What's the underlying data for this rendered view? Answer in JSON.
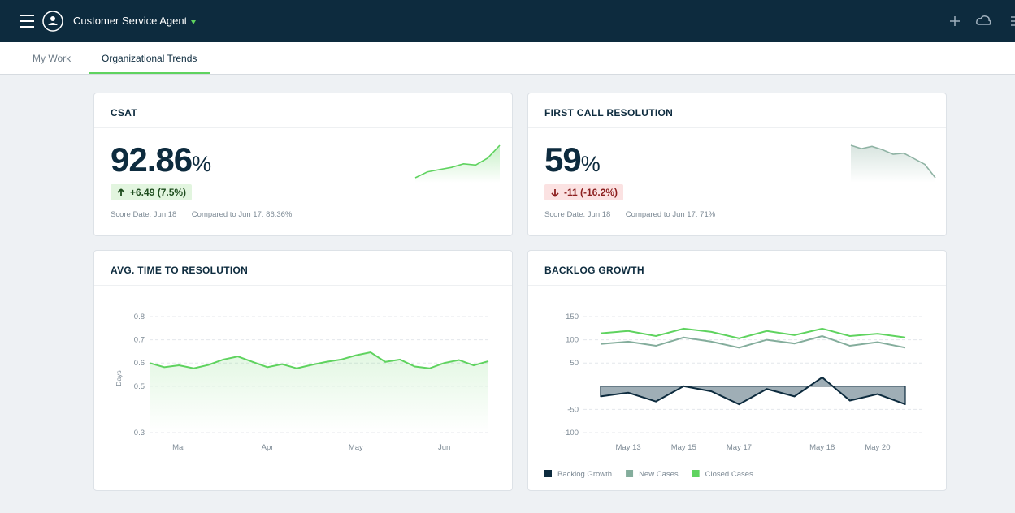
{
  "header": {
    "title": "Customer Service Agent"
  },
  "tabs": [
    "My Work",
    "Organizational Trends"
  ],
  "cards": [
    {
      "title": "CSAT",
      "value": "92.86",
      "unit": "%",
      "change": "+6.49 (7.5%)",
      "direction": "up",
      "score_date": "Score Date: Jun 18",
      "compared": "Compared to Jun 17: 86.36%",
      "sparkline": {
        "type": "line",
        "values": [
          76.3,
          79.3,
          80.5,
          81.6,
          83.4,
          82.8,
          86.36,
          92.86
        ],
        "color": "#5fd35f"
      }
    },
    {
      "title": "FIRST CALL RESOLUTION",
      "value": "59",
      "unit": "%",
      "change": "-11 (-16.2%)",
      "direction": "down",
      "score_date": "Score Date: Jun 18",
      "compared": "Compared to Jun 17: 71%",
      "sparkline": {
        "type": "line",
        "values": [
          88,
          85,
          87,
          84,
          80,
          81,
          76,
          71,
          59
        ],
        "color": "#8fb3a4"
      }
    },
    {
      "title": "AVG. TIME TO RESOLUTION",
      "chart": {
        "type": "line",
        "ylabel": "Days",
        "categories": [
          null,
          null,
          "Mar",
          null,
          null,
          null,
          null,
          null,
          "Apr",
          null,
          null,
          null,
          null,
          null,
          "May",
          null,
          null,
          null,
          null,
          null,
          "Jun",
          null,
          null,
          null
        ],
        "values": [
          0.6,
          0.582,
          0.59,
          0.577,
          0.592,
          0.615,
          0.628,
          0.605,
          0.582,
          0.595,
          0.577,
          0.592,
          0.605,
          0.615,
          0.633,
          0.646,
          0.605,
          0.615,
          0.585,
          0.577,
          0.6,
          0.613,
          0.59,
          0.608
        ],
        "color": "#5fd35f",
        "ylim": [
          0.3,
          0.8
        ],
        "yticks": [
          0.8,
          0.7,
          0.6,
          0.5,
          0.3
        ],
        "grid": true
      }
    },
    {
      "title": "BACKLOG GROWTH",
      "chart": {
        "type": "line",
        "categories": [
          null,
          "May 13",
          null,
          "May 15",
          null,
          "May 17",
          null,
          null,
          "May 18",
          null,
          "May 20",
          null
        ],
        "series": [
          {
            "name": "Backlog Growth",
            "color": "#0d2b3e",
            "area": true,
            "values": [
              -22,
              -14,
              -33,
              0,
              -11,
              -39,
              -6,
              -22,
              19,
              -31,
              -17,
              -39
            ]
          },
          {
            "name": "New Cases",
            "color": "#84ad9c",
            "values": [
              91,
              96,
              87,
              105,
              96,
              83,
              100,
              92,
              108,
              87,
              95,
              83
            ]
          },
          {
            "name": "Closed Cases",
            "color": "#5fd35f",
            "values": [
              114,
              119,
              108,
              124,
              117,
              103,
              119,
              110,
              124,
              108,
              113,
              105
            ]
          }
        ],
        "ylim": [
          -100,
          150
        ],
        "yticks": [
          150,
          100,
          50,
          -50,
          -100
        ],
        "grid": true,
        "legend": "bottom-left"
      }
    }
  ]
}
